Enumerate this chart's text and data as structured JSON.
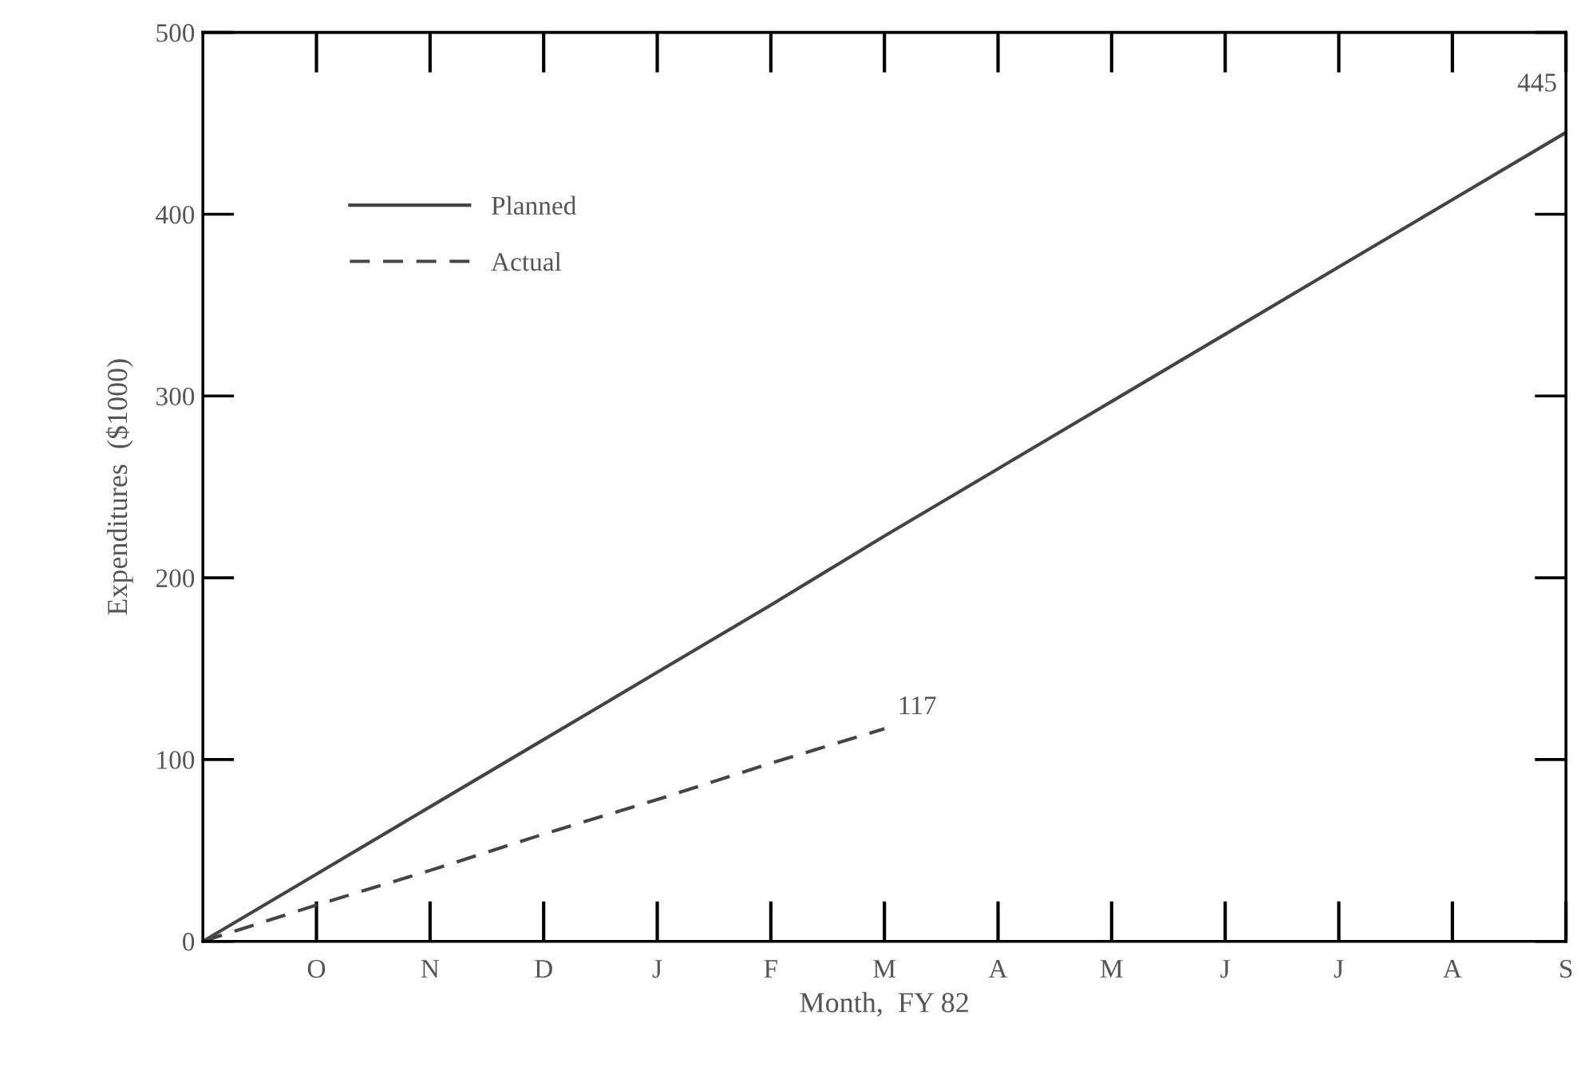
{
  "chart_data": {
    "type": "line",
    "xlabel": "Month,  FY 82",
    "ylabel": "Expenditures  ($1000)",
    "categories": [
      null,
      "O",
      "N",
      "D",
      "J",
      "F",
      "M",
      "A",
      "M",
      "J",
      "J",
      "A",
      "S"
    ],
    "ylim": [
      0,
      500
    ],
    "yticks": [
      0,
      100,
      200,
      300,
      400,
      500
    ],
    "series": [
      {
        "name": "Planned",
        "color": "#444444",
        "line_style": "solid",
        "values": [
          0,
          37,
          74,
          111,
          148,
          185,
          223,
          260,
          297,
          334,
          371,
          408,
          445
        ],
        "value_labels": [
          null,
          null,
          null,
          null,
          null,
          null,
          null,
          null,
          null,
          null,
          null,
          null,
          "445"
        ]
      },
      {
        "name": "Actual",
        "color": "#444444",
        "line_style": "dashed",
        "values": [
          0,
          20,
          39,
          59,
          78,
          98,
          117,
          null,
          null,
          null,
          null,
          null,
          null
        ],
        "value_labels": [
          null,
          null,
          null,
          null,
          null,
          null,
          "117",
          null,
          null,
          null,
          null,
          null,
          null
        ]
      }
    ],
    "legend": "top left",
    "grid": false,
    "marker": "none"
  }
}
